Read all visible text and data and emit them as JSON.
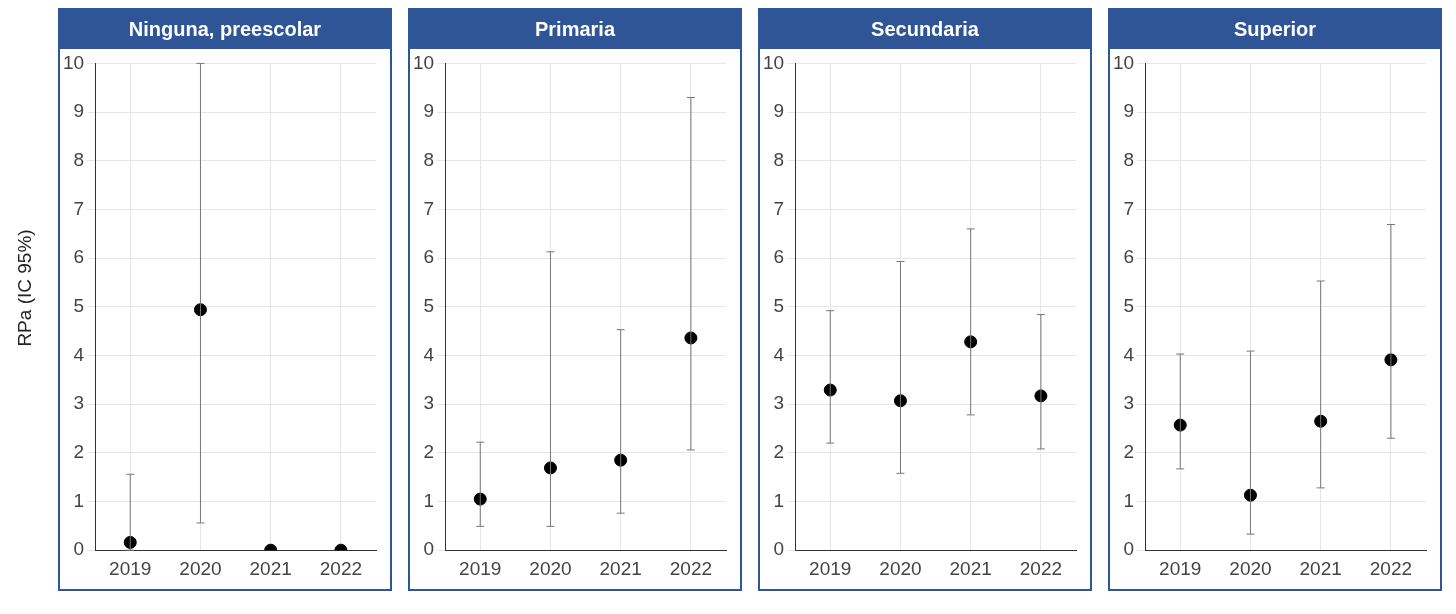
{
  "chart_data": [
    {
      "type": "scatter",
      "title": "Ninguna, preescolar",
      "ylabel": "RPa (IC 95%)",
      "categories": [
        "2019",
        "2020",
        "2021",
        "2022"
      ],
      "values": [
        0.16,
        4.94,
        0,
        0
      ],
      "errors": [
        [
          0,
          1.56
        ],
        [
          0.56,
          10
        ],
        null,
        null
      ],
      "color": "#000000",
      "ylim": [
        0,
        10
      ],
      "yticks": [
        0,
        1,
        2,
        3,
        4,
        5,
        6,
        7,
        8,
        9,
        10
      ],
      "grid": true,
      "marker": "circle"
    },
    {
      "type": "scatter",
      "title": "Primaria",
      "categories": [
        "2019",
        "2020",
        "2021",
        "2022"
      ],
      "values": [
        1.05,
        1.69,
        1.85,
        4.36
      ],
      "errors": [
        [
          0.49,
          2.22
        ],
        [
          0.49,
          6.13
        ],
        [
          0.76,
          4.53
        ],
        [
          2.06,
          9.3
        ]
      ],
      "color": "#000000",
      "ylim": [
        0,
        10
      ],
      "yticks": [
        0,
        1,
        2,
        3,
        4,
        5,
        6,
        7,
        8,
        9,
        10
      ],
      "grid": true,
      "marker": "circle"
    },
    {
      "type": "scatter",
      "title": "Secundaria",
      "categories": [
        "2019",
        "2020",
        "2021",
        "2022"
      ],
      "values": [
        3.29,
        3.07,
        4.28,
        3.17
      ],
      "errors": [
        [
          2.2,
          4.92
        ],
        [
          1.58,
          5.93
        ],
        [
          2.78,
          6.6
        ],
        [
          2.08,
          4.84
        ]
      ],
      "color": "#000000",
      "ylim": [
        0,
        10
      ],
      "yticks": [
        0,
        1,
        2,
        3,
        4,
        5,
        6,
        7,
        8,
        9,
        10
      ],
      "grid": true,
      "marker": "circle"
    },
    {
      "type": "scatter",
      "title": "Superior",
      "categories": [
        "2019",
        "2020",
        "2021",
        "2022"
      ],
      "values": [
        2.57,
        1.13,
        2.65,
        3.91
      ],
      "errors": [
        [
          1.67,
          4.03
        ],
        [
          0.33,
          4.09
        ],
        [
          1.28,
          5.53
        ],
        [
          2.3,
          6.69
        ]
      ],
      "color": "#000000",
      "ylim": [
        0,
        10
      ],
      "yticks": [
        0,
        1,
        2,
        3,
        4,
        5,
        6,
        7,
        8,
        9,
        10
      ],
      "grid": true,
      "marker": "circle"
    }
  ]
}
